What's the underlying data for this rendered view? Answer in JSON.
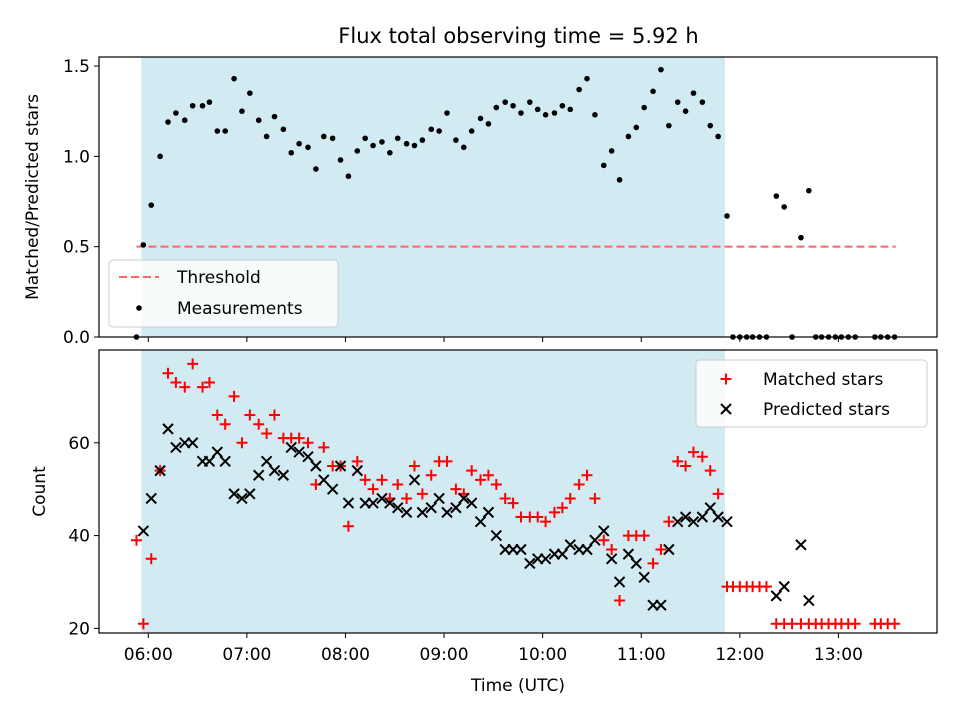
{
  "title": "Flux total observing time = 5.92 h",
  "colors": {
    "shade": "#add8e6",
    "threshold": "#ff6666",
    "matched": "#ff0000",
    "predicted": "#000000",
    "measurement": "#000000"
  },
  "chart_data": [
    {
      "type": "scatter",
      "ylabel": "Matched/Predicted stars",
      "xlim": [
        5.5,
        14.0
      ],
      "ylim": [
        0.0,
        1.55
      ],
      "yticks": [
        0.0,
        0.5,
        1.0,
        1.5
      ],
      "ytick_labels": [
        "0.0",
        "0.5",
        "1.0",
        "1.5"
      ],
      "shaded_x": [
        5.93,
        11.85
      ],
      "legend_location": "lower-left",
      "legend": {
        "threshold": "Threshold",
        "measurements": "Measurements"
      },
      "threshold": {
        "y": 0.5,
        "x": [
          5.88,
          13.58
        ]
      },
      "measurements": [
        [
          5.88,
          0.0
        ],
        [
          5.95,
          0.51
        ],
        [
          6.03,
          0.73
        ],
        [
          6.12,
          1.0
        ],
        [
          6.2,
          1.19
        ],
        [
          6.28,
          1.24
        ],
        [
          6.37,
          1.2
        ],
        [
          6.45,
          1.28
        ],
        [
          6.55,
          1.28
        ],
        [
          6.62,
          1.3
        ],
        [
          6.7,
          1.14
        ],
        [
          6.78,
          1.14
        ],
        [
          6.87,
          1.43
        ],
        [
          6.95,
          1.25
        ],
        [
          7.03,
          1.35
        ],
        [
          7.12,
          1.2
        ],
        [
          7.2,
          1.11
        ],
        [
          7.28,
          1.22
        ],
        [
          7.37,
          1.15
        ],
        [
          7.45,
          1.02
        ],
        [
          7.53,
          1.07
        ],
        [
          7.62,
          1.05
        ],
        [
          7.7,
          0.93
        ],
        [
          7.78,
          1.11
        ],
        [
          7.87,
          1.1
        ],
        [
          7.95,
          0.98
        ],
        [
          8.03,
          0.89
        ],
        [
          8.12,
          1.03
        ],
        [
          8.2,
          1.1
        ],
        [
          8.28,
          1.06
        ],
        [
          8.37,
          1.08
        ],
        [
          8.45,
          1.02
        ],
        [
          8.53,
          1.1
        ],
        [
          8.62,
          1.07
        ],
        [
          8.7,
          1.06
        ],
        [
          8.78,
          1.09
        ],
        [
          8.87,
          1.15
        ],
        [
          8.95,
          1.14
        ],
        [
          9.03,
          1.24
        ],
        [
          9.12,
          1.09
        ],
        [
          9.2,
          1.05
        ],
        [
          9.28,
          1.14
        ],
        [
          9.37,
          1.21
        ],
        [
          9.45,
          1.18
        ],
        [
          9.53,
          1.27
        ],
        [
          9.62,
          1.3
        ],
        [
          9.7,
          1.28
        ],
        [
          9.78,
          1.24
        ],
        [
          9.87,
          1.3
        ],
        [
          9.95,
          1.26
        ],
        [
          10.03,
          1.23
        ],
        [
          10.12,
          1.24
        ],
        [
          10.2,
          1.28
        ],
        [
          10.28,
          1.26
        ],
        [
          10.37,
          1.37
        ],
        [
          10.45,
          1.43
        ],
        [
          10.53,
          1.23
        ],
        [
          10.62,
          0.95
        ],
        [
          10.7,
          1.03
        ],
        [
          10.78,
          0.87
        ],
        [
          10.87,
          1.11
        ],
        [
          10.95,
          1.16
        ],
        [
          11.03,
          1.27
        ],
        [
          11.12,
          1.36
        ],
        [
          11.2,
          1.48
        ],
        [
          11.28,
          1.17
        ],
        [
          11.37,
          1.3
        ],
        [
          11.45,
          1.25
        ],
        [
          11.53,
          1.35
        ],
        [
          11.62,
          1.3
        ],
        [
          11.7,
          1.17
        ],
        [
          11.78,
          1.11
        ],
        [
          11.87,
          0.67
        ],
        [
          11.93,
          0.0
        ],
        [
          12.0,
          0.0
        ],
        [
          12.07,
          0.0
        ],
        [
          12.13,
          0.0
        ],
        [
          12.2,
          0.0
        ],
        [
          12.27,
          0.0
        ],
        [
          12.37,
          0.78
        ],
        [
          12.45,
          0.72
        ],
        [
          12.53,
          0.0
        ],
        [
          12.62,
          0.55
        ],
        [
          12.7,
          0.81
        ],
        [
          12.77,
          0.0
        ],
        [
          12.83,
          0.0
        ],
        [
          12.9,
          0.0
        ],
        [
          12.97,
          0.0
        ],
        [
          13.03,
          0.0
        ],
        [
          13.1,
          0.0
        ],
        [
          13.17,
          0.0
        ],
        [
          13.37,
          0.0
        ],
        [
          13.43,
          0.0
        ],
        [
          13.5,
          0.0
        ],
        [
          13.57,
          0.0
        ]
      ]
    },
    {
      "type": "scatter",
      "xlabel": "Time (UTC)",
      "ylabel": "Count",
      "xlim": [
        5.5,
        14.0
      ],
      "ylim": [
        19.0,
        80.0
      ],
      "yticks": [
        20,
        40,
        60
      ],
      "ytick_labels": [
        "20",
        "40",
        "60"
      ],
      "xticks": [
        6,
        7,
        8,
        9,
        10,
        11,
        12,
        13
      ],
      "xtick_labels": [
        "06:00",
        "07:00",
        "08:00",
        "09:00",
        "10:00",
        "11:00",
        "12:00",
        "13:00"
      ],
      "shaded_x": [
        5.93,
        11.85
      ],
      "legend_location": "upper-right",
      "series": [
        {
          "name": "Matched stars",
          "marker": "plus",
          "points": [
            [
              5.88,
              39
            ],
            [
              5.95,
              21
            ],
            [
              6.03,
              35
            ],
            [
              6.12,
              54
            ],
            [
              6.2,
              75
            ],
            [
              6.28,
              73
            ],
            [
              6.37,
              72
            ],
            [
              6.45,
              77
            ],
            [
              6.55,
              72
            ],
            [
              6.62,
              73
            ],
            [
              6.7,
              66
            ],
            [
              6.78,
              64
            ],
            [
              6.87,
              70
            ],
            [
              6.95,
              60
            ],
            [
              7.03,
              66
            ],
            [
              7.12,
              64
            ],
            [
              7.2,
              62
            ],
            [
              7.28,
              66
            ],
            [
              7.37,
              61
            ],
            [
              7.45,
              61
            ],
            [
              7.53,
              61
            ],
            [
              7.62,
              60
            ],
            [
              7.7,
              51
            ],
            [
              7.78,
              59
            ],
            [
              7.87,
              55
            ],
            [
              7.95,
              55
            ],
            [
              8.03,
              42
            ],
            [
              8.12,
              56
            ],
            [
              8.2,
              52
            ],
            [
              8.28,
              50
            ],
            [
              8.37,
              52
            ],
            [
              8.45,
              48
            ],
            [
              8.53,
              51
            ],
            [
              8.62,
              48
            ],
            [
              8.7,
              55
            ],
            [
              8.78,
              49
            ],
            [
              8.87,
              53
            ],
            [
              8.95,
              56
            ],
            [
              9.03,
              56
            ],
            [
              9.12,
              50
            ],
            [
              9.2,
              49
            ],
            [
              9.28,
              54
            ],
            [
              9.37,
              52
            ],
            [
              9.45,
              53
            ],
            [
              9.53,
              51
            ],
            [
              9.62,
              48
            ],
            [
              9.7,
              47
            ],
            [
              9.78,
              44
            ],
            [
              9.87,
              44
            ],
            [
              9.95,
              44
            ],
            [
              10.03,
              43
            ],
            [
              10.12,
              45
            ],
            [
              10.2,
              46
            ],
            [
              10.28,
              48
            ],
            [
              10.37,
              51
            ],
            [
              10.45,
              53
            ],
            [
              10.53,
              48
            ],
            [
              10.62,
              39
            ],
            [
              10.7,
              37
            ],
            [
              10.78,
              26
            ],
            [
              10.87,
              40
            ],
            [
              10.95,
              40
            ],
            [
              11.03,
              40
            ],
            [
              11.12,
              34
            ],
            [
              11.2,
              37
            ],
            [
              11.28,
              43
            ],
            [
              11.37,
              56
            ],
            [
              11.45,
              55
            ],
            [
              11.53,
              58
            ],
            [
              11.62,
              57
            ],
            [
              11.7,
              54
            ],
            [
              11.78,
              49
            ],
            [
              11.87,
              29
            ],
            [
              11.93,
              29
            ],
            [
              12.0,
              29
            ],
            [
              12.07,
              29
            ],
            [
              12.13,
              29
            ],
            [
              12.2,
              29
            ],
            [
              12.27,
              29
            ],
            [
              12.37,
              21
            ],
            [
              12.45,
              21
            ],
            [
              12.53,
              21
            ],
            [
              12.62,
              21
            ],
            [
              12.7,
              21
            ],
            [
              12.77,
              21
            ],
            [
              12.83,
              21
            ],
            [
              12.9,
              21
            ],
            [
              12.97,
              21
            ],
            [
              13.03,
              21
            ],
            [
              13.1,
              21
            ],
            [
              13.17,
              21
            ],
            [
              13.37,
              21
            ],
            [
              13.43,
              21
            ],
            [
              13.5,
              21
            ],
            [
              13.57,
              21
            ]
          ]
        },
        {
          "name": "Predicted stars",
          "marker": "x",
          "points": [
            [
              5.95,
              41
            ],
            [
              6.03,
              48
            ],
            [
              6.12,
              54
            ],
            [
              6.2,
              63
            ],
            [
              6.28,
              59
            ],
            [
              6.37,
              60
            ],
            [
              6.45,
              60
            ],
            [
              6.55,
              56
            ],
            [
              6.62,
              56
            ],
            [
              6.7,
              58
            ],
            [
              6.78,
              56
            ],
            [
              6.87,
              49
            ],
            [
              6.95,
              48
            ],
            [
              7.03,
              49
            ],
            [
              7.12,
              53
            ],
            [
              7.2,
              56
            ],
            [
              7.28,
              54
            ],
            [
              7.37,
              53
            ],
            [
              7.45,
              59
            ],
            [
              7.53,
              58
            ],
            [
              7.62,
              57
            ],
            [
              7.7,
              55
            ],
            [
              7.78,
              52
            ],
            [
              7.87,
              50
            ],
            [
              7.95,
              55
            ],
            [
              8.03,
              47
            ],
            [
              8.12,
              54
            ],
            [
              8.2,
              47
            ],
            [
              8.28,
              47
            ],
            [
              8.37,
              48
            ],
            [
              8.45,
              47
            ],
            [
              8.53,
              46
            ],
            [
              8.62,
              45
            ],
            [
              8.7,
              52
            ],
            [
              8.78,
              45
            ],
            [
              8.87,
              46
            ],
            [
              8.95,
              48
            ],
            [
              9.03,
              45
            ],
            [
              9.12,
              46
            ],
            [
              9.2,
              48
            ],
            [
              9.28,
              47
            ],
            [
              9.37,
              43
            ],
            [
              9.45,
              45
            ],
            [
              9.53,
              40
            ],
            [
              9.62,
              37
            ],
            [
              9.7,
              37
            ],
            [
              9.78,
              37
            ],
            [
              9.87,
              34
            ],
            [
              9.95,
              35
            ],
            [
              10.03,
              35
            ],
            [
              10.12,
              36
            ],
            [
              10.2,
              36
            ],
            [
              10.28,
              38
            ],
            [
              10.37,
              37
            ],
            [
              10.45,
              37
            ],
            [
              10.53,
              39
            ],
            [
              10.62,
              41
            ],
            [
              10.7,
              35
            ],
            [
              10.78,
              30
            ],
            [
              10.87,
              36
            ],
            [
              10.95,
              34
            ],
            [
              11.03,
              31
            ],
            [
              11.12,
              25
            ],
            [
              11.2,
              25
            ],
            [
              11.28,
              37
            ],
            [
              11.37,
              43
            ],
            [
              11.45,
              44
            ],
            [
              11.53,
              43
            ],
            [
              11.62,
              44
            ],
            [
              11.7,
              46
            ],
            [
              11.78,
              44
            ],
            [
              11.87,
              43
            ],
            [
              12.37,
              27
            ],
            [
              12.45,
              29
            ],
            [
              12.62,
              38
            ],
            [
              12.7,
              26
            ]
          ]
        }
      ]
    }
  ]
}
